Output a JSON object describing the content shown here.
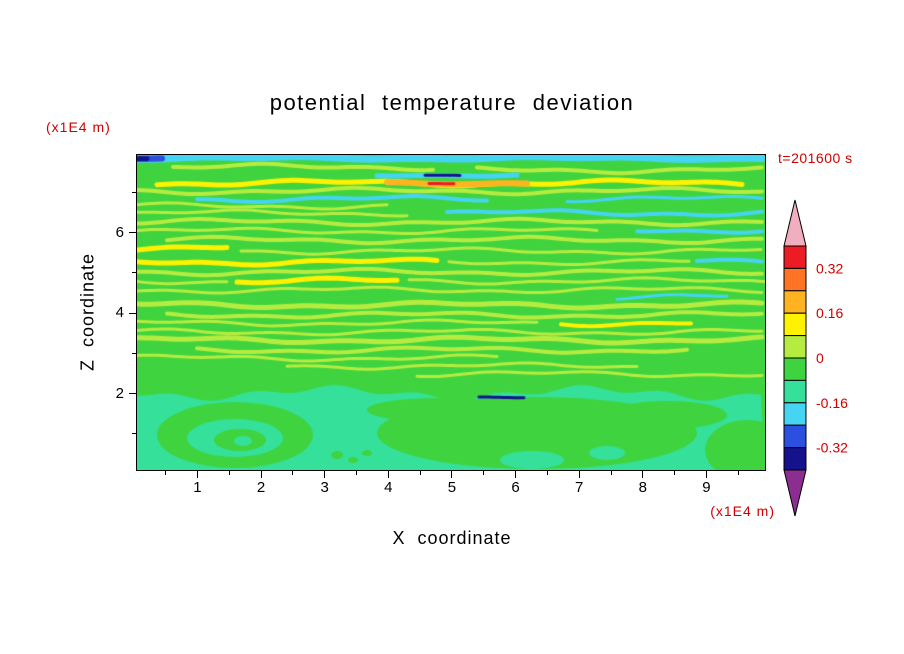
{
  "title": "potential temperature deviation",
  "labels": {
    "y_unit": "(x1E4 m)",
    "x_unit": "(x1E4 m)",
    "time": "t=201600 s",
    "xlabel": "X coordinate",
    "ylabel": "Z coordinate"
  },
  "accent_color": "#d10000",
  "chart_data": {
    "type": "heatmap",
    "title": "potential temperature deviation",
    "xlabel": "X coordinate (x1E4 m)",
    "ylabel": "Z coordinate (x1E4 m)",
    "time": "t=201600 s",
    "xlim": [
      0.05,
      9.92
    ],
    "ylim": [
      0.1,
      7.93
    ],
    "x_ticks": [
      1,
      2,
      3,
      4,
      5,
      6,
      7,
      8,
      9
    ],
    "x_minor_step": 0.5,
    "y_ticks": [
      2,
      4,
      6
    ],
    "y_minor_step": 1,
    "grid": false,
    "legend_position": "right",
    "colorbar": {
      "label_values": [
        "0.32",
        "0.16",
        "0",
        "-0.16",
        "-0.32"
      ],
      "boundaries": [
        0.4,
        0.32,
        0.24,
        0.16,
        0.08,
        0,
        -0.08,
        -0.16,
        -0.24,
        -0.32,
        -0.4
      ],
      "segment_colors": [
        "#ec1c24",
        "#ff7324",
        "#ffb321",
        "#fef102",
        "#b6ec40",
        "#3fd43f",
        "#35e09b",
        "#45d4f2",
        "#2b50e0",
        "#14128c"
      ],
      "over_color": "#f0aebe",
      "under_color": "#8c2d91"
    },
    "palette": {
      "g": "#3fd43f",
      "sg": "#35e09b",
      "yg": "#b6ec40",
      "y": "#fef102",
      "cy": "#45d4f2",
      "o": "#ffb321",
      "or": "#ff7324",
      "r": "#ec1c24",
      "b": "#2b50e0",
      "nv": "#14128c"
    },
    "field": {
      "upper_bg": "g",
      "lower_bg": "sg",
      "boundary_y_frac": 0.7556,
      "bands": [
        {
          "y": 3,
          "x0": 0,
          "x1": 628,
          "w": 7,
          "c": "cy",
          "a": 1
        },
        {
          "y": 3,
          "x0": 0,
          "x1": 26,
          "w": 6,
          "c": "b",
          "a": 0.5
        },
        {
          "y": 3,
          "x0": 0,
          "x1": 12,
          "w": 5,
          "c": "nv",
          "a": 0.5
        },
        {
          "y": 12,
          "x0": 36,
          "x1": 300,
          "w": 4,
          "c": "yg"
        },
        {
          "y": 15,
          "x0": 340,
          "x1": 628,
          "w": 4,
          "c": "yg"
        },
        {
          "y": 20,
          "x0": 240,
          "x1": 380,
          "w": 5,
          "c": "cy",
          "a": 1
        },
        {
          "y": 20,
          "x0": 288,
          "x1": 326,
          "w": 3,
          "c": "nv",
          "a": 0.5
        },
        {
          "y": 28,
          "x0": 20,
          "x1": 606,
          "w": 5,
          "c": "y"
        },
        {
          "y": 28,
          "x0": 250,
          "x1": 392,
          "w": 6,
          "c": "o",
          "a": 1
        },
        {
          "y": 28,
          "x0": 292,
          "x1": 318,
          "w": 3,
          "c": "r",
          "a": 0.5
        },
        {
          "y": 36,
          "x0": 0,
          "x1": 628,
          "w": 4,
          "c": "yg"
        },
        {
          "y": 44,
          "x0": 60,
          "x1": 350,
          "w": 4,
          "c": "cy"
        },
        {
          "y": 44,
          "x0": 430,
          "x1": 628,
          "w": 3,
          "c": "cy"
        },
        {
          "y": 51,
          "x0": 0,
          "x1": 250,
          "w": 3,
          "c": "yg"
        },
        {
          "y": 58,
          "x0": 310,
          "x1": 628,
          "w": 4,
          "c": "cy"
        },
        {
          "y": 58,
          "x0": 0,
          "x1": 270,
          "w": 3,
          "c": "yg"
        },
        {
          "y": 67,
          "x0": 0,
          "x1": 628,
          "w": 4,
          "c": "yg"
        },
        {
          "y": 75,
          "x0": 500,
          "x1": 628,
          "w": 4,
          "c": "cy"
        },
        {
          "y": 76,
          "x0": 0,
          "x1": 460,
          "w": 3,
          "c": "yg"
        },
        {
          "y": 85,
          "x0": 30,
          "x1": 628,
          "w": 4,
          "c": "yg"
        },
        {
          "y": 93,
          "x0": 0,
          "x1": 92,
          "w": 5,
          "c": "y"
        },
        {
          "y": 96,
          "x0": 104,
          "x1": 628,
          "w": 3,
          "c": "yg"
        },
        {
          "y": 107,
          "x0": 0,
          "x1": 300,
          "w": 5,
          "c": "y"
        },
        {
          "y": 107,
          "x0": 312,
          "x1": 556,
          "w": 3,
          "c": "yg"
        },
        {
          "y": 107,
          "x0": 560,
          "x1": 628,
          "w": 4,
          "c": "cy"
        },
        {
          "y": 117,
          "x0": 0,
          "x1": 628,
          "w": 4,
          "c": "yg"
        },
        {
          "y": 126,
          "x0": 100,
          "x1": 262,
          "w": 5,
          "c": "y"
        },
        {
          "y": 126,
          "x0": 272,
          "x1": 628,
          "w": 3,
          "c": "yg"
        },
        {
          "y": 126,
          "x0": 0,
          "x1": 90,
          "w": 3,
          "c": "yg"
        },
        {
          "y": 135,
          "x0": 0,
          "x1": 628,
          "w": 3,
          "c": "yg"
        },
        {
          "y": 142,
          "x0": 480,
          "x1": 592,
          "w": 3,
          "c": "cy"
        },
        {
          "y": 150,
          "x0": 0,
          "x1": 628,
          "w": 5,
          "c": "yg"
        },
        {
          "y": 160,
          "x0": 30,
          "x1": 628,
          "w": 4,
          "c": "yg"
        },
        {
          "y": 168,
          "x0": 0,
          "x1": 400,
          "w": 3,
          "c": "yg"
        },
        {
          "y": 168,
          "x0": 424,
          "x1": 556,
          "w": 4,
          "c": "y"
        },
        {
          "y": 177,
          "x0": 0,
          "x1": 628,
          "w": 3,
          "c": "yg"
        },
        {
          "y": 185,
          "x0": 0,
          "x1": 628,
          "w": 5,
          "c": "yg"
        },
        {
          "y": 195,
          "x0": 60,
          "x1": 550,
          "w": 4,
          "c": "yg"
        },
        {
          "y": 203,
          "x0": 0,
          "x1": 360,
          "w": 3,
          "c": "yg"
        },
        {
          "y": 211,
          "x0": 150,
          "x1": 500,
          "w": 3,
          "c": "yg"
        },
        {
          "y": 219,
          "x0": 280,
          "x1": 628,
          "w": 3,
          "c": "yg"
        },
        {
          "y": 242,
          "x0": 342,
          "x1": 388,
          "w": 3,
          "c": "nv",
          "a": 0.5
        }
      ],
      "blobs": [
        {
          "cx": 98,
          "cy": 280,
          "rx": 78,
          "ry": 33,
          "c": "g"
        },
        {
          "cx": 98,
          "cy": 283,
          "rx": 48,
          "ry": 19,
          "c": "sg"
        },
        {
          "cx": 103,
          "cy": 285,
          "rx": 26,
          "ry": 11,
          "c": "g"
        },
        {
          "cx": 106,
          "cy": 286,
          "rx": 9,
          "ry": 5,
          "c": "sg"
        },
        {
          "cx": 160,
          "cy": 274,
          "rx": 7,
          "ry": 5,
          "c": "g"
        },
        {
          "cx": 340,
          "cy": 250,
          "rx": 30,
          "ry": 6,
          "c": "g"
        },
        {
          "cx": 400,
          "cy": 278,
          "rx": 160,
          "ry": 36,
          "c": "g"
        },
        {
          "cx": 300,
          "cy": 255,
          "rx": 70,
          "ry": 12,
          "c": "g"
        },
        {
          "cx": 530,
          "cy": 260,
          "rx": 60,
          "ry": 14,
          "c": "g"
        },
        {
          "cx": 395,
          "cy": 305,
          "rx": 32,
          "ry": 9,
          "c": "sg"
        },
        {
          "cx": 470,
          "cy": 298,
          "rx": 18,
          "ry": 7,
          "c": "sg"
        },
        {
          "cx": 610,
          "cy": 295,
          "rx": 42,
          "ry": 30,
          "c": "g"
        },
        {
          "cx": 200,
          "cy": 300,
          "rx": 6,
          "ry": 4,
          "c": "g"
        },
        {
          "cx": 216,
          "cy": 305,
          "rx": 5,
          "ry": 3,
          "c": "g"
        },
        {
          "cx": 230,
          "cy": 298,
          "rx": 5,
          "ry": 3,
          "c": "g"
        }
      ]
    }
  }
}
